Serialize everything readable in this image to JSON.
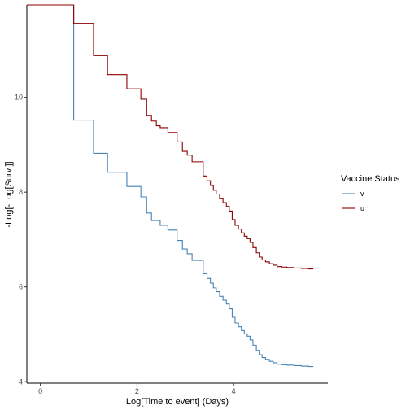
{
  "chart_data": {
    "type": "line",
    "step": true,
    "xlabel": "Log[Time to event] (Days)",
    "ylabel": "-Log[-Log[Surv.]]",
    "xlim": [
      -0.28,
      5.95
    ],
    "ylim": [
      3.97,
      11.95
    ],
    "xticks": [
      {
        "value": 0,
        "label": "0"
      },
      {
        "value": 2,
        "label": "2"
      },
      {
        "value": 4,
        "label": "4"
      }
    ],
    "yticks": [
      {
        "value": 4,
        "label": "4"
      },
      {
        "value": 6,
        "label": "6"
      },
      {
        "value": 8,
        "label": "8"
      },
      {
        "value": 10,
        "label": "10"
      }
    ],
    "legend": {
      "title": "Vaccine Status",
      "position": "right",
      "entries": [
        {
          "label": "v",
          "color": "#4682b4"
        },
        {
          "label": "u",
          "color": "#8b0000"
        }
      ]
    },
    "series": [
      {
        "name": "v",
        "color": "#4682b4",
        "x": [
          -0.28,
          0.69,
          1.1,
          1.39,
          1.79,
          2.08,
          2.2,
          2.3,
          2.48,
          2.64,
          2.83,
          2.94,
          3.04,
          3.14,
          3.37,
          3.45,
          3.52,
          3.58,
          3.64,
          3.71,
          3.78,
          3.85,
          3.91,
          3.97,
          4.03,
          4.1,
          4.16,
          4.22,
          4.28,
          4.34,
          4.4,
          4.47,
          4.53,
          4.59,
          4.66,
          4.74,
          4.82,
          4.9,
          5.0,
          5.1,
          5.25,
          5.4,
          5.55,
          5.65
        ],
        "y": [
          11.95,
          9.52,
          8.82,
          8.42,
          8.12,
          7.9,
          7.56,
          7.4,
          7.3,
          7.2,
          6.98,
          6.8,
          6.7,
          6.56,
          6.28,
          6.18,
          6.08,
          5.98,
          5.9,
          5.8,
          5.72,
          5.64,
          5.54,
          5.36,
          5.24,
          5.16,
          5.08,
          5.01,
          4.96,
          4.88,
          4.77,
          4.66,
          4.57,
          4.51,
          4.47,
          4.43,
          4.4,
          4.37,
          4.36,
          4.35,
          4.34,
          4.33,
          4.32,
          4.32
        ]
      },
      {
        "name": "u",
        "color": "#8b0000",
        "x": [
          -0.28,
          0.69,
          1.1,
          1.39,
          1.79,
          2.08,
          2.2,
          2.3,
          2.4,
          2.48,
          2.64,
          2.83,
          2.94,
          3.04,
          3.14,
          3.37,
          3.45,
          3.52,
          3.58,
          3.64,
          3.71,
          3.78,
          3.85,
          3.91,
          3.97,
          4.03,
          4.1,
          4.16,
          4.22,
          4.28,
          4.34,
          4.4,
          4.47,
          4.53,
          4.59,
          4.66,
          4.74,
          4.82,
          4.9,
          5.0,
          5.1,
          5.25,
          5.4,
          5.55,
          5.65
        ],
        "y": [
          11.95,
          11.56,
          10.88,
          10.48,
          10.18,
          9.96,
          9.62,
          9.5,
          9.4,
          9.36,
          9.26,
          9.06,
          8.86,
          8.78,
          8.64,
          8.34,
          8.24,
          8.14,
          8.04,
          7.96,
          7.86,
          7.78,
          7.7,
          7.6,
          7.42,
          7.3,
          7.22,
          7.14,
          7.07,
          7.02,
          6.94,
          6.83,
          6.72,
          6.63,
          6.57,
          6.53,
          6.49,
          6.46,
          6.43,
          6.42,
          6.41,
          6.4,
          6.39,
          6.38,
          6.38
        ]
      }
    ]
  }
}
